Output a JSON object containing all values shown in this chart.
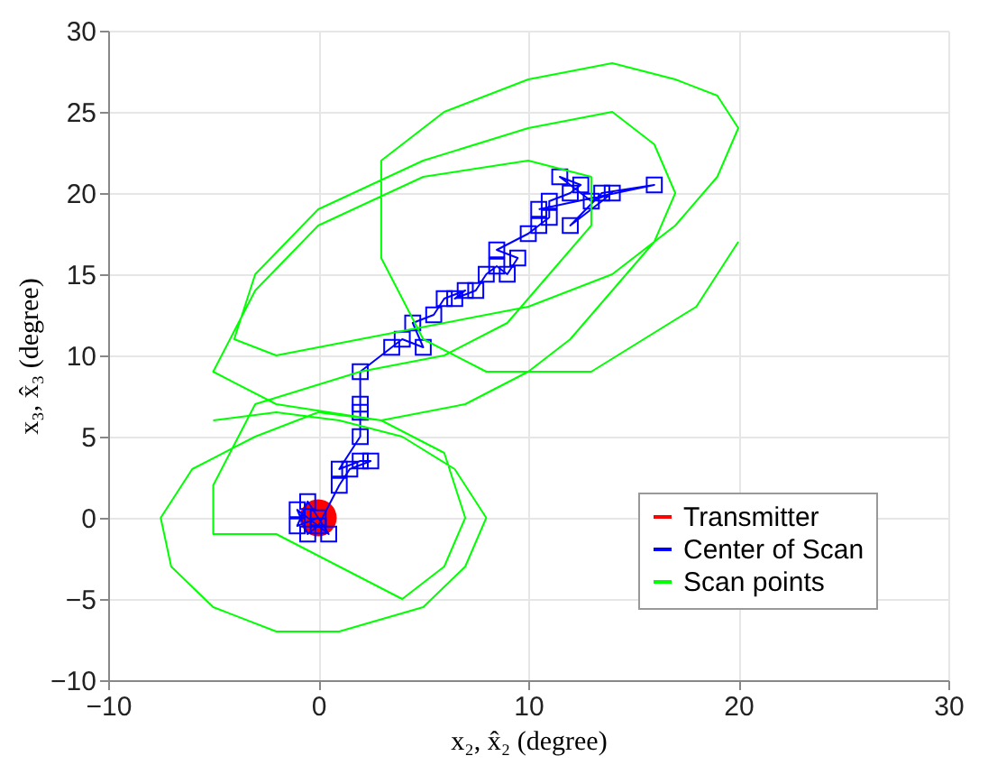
{
  "chart_data": {
    "type": "scatter",
    "xlabel": "x₂, x̂₂ (degree)",
    "ylabel": "x₃, x̂₃ (degree)",
    "xlim": [
      -10,
      30
    ],
    "ylim": [
      -10,
      30
    ],
    "xticks": [
      -10,
      0,
      10,
      20,
      30
    ],
    "yticks": [
      -10,
      -5,
      0,
      5,
      10,
      15,
      20,
      25,
      30
    ],
    "grid": true,
    "legend": "bottom right",
    "series": [
      {
        "name": "Transmitter",
        "marker": "circle",
        "color": "#ff0000",
        "x": [
          0
        ],
        "values": [
          0
        ]
      },
      {
        "name": "Center of Scan",
        "type": "line",
        "marker": "square",
        "color": "#0000ff",
        "x": [
          0,
          -1,
          -0.5,
          0.5,
          -1,
          -0.5,
          0,
          1,
          1.5,
          2.5,
          2,
          1,
          2,
          2,
          2,
          2,
          3.5,
          4,
          5,
          4.5,
          5.5,
          6,
          7,
          6.5,
          7.5,
          8,
          8.5,
          9,
          9.5,
          8.5,
          10,
          10.5,
          11,
          11,
          12,
          12.5,
          11.5,
          13,
          14,
          12,
          13.5,
          16,
          10.5
        ],
        "values": [
          0,
          -0.5,
          1,
          -1,
          0.5,
          -1,
          -0.5,
          2,
          3,
          3.5,
          3.5,
          3,
          5,
          6.5,
          7,
          9,
          10.5,
          11,
          10.5,
          12,
          12.5,
          13.5,
          14,
          13.5,
          14,
          15,
          15.5,
          15,
          16,
          16.5,
          17.5,
          18,
          18.5,
          19.5,
          20,
          20.5,
          21,
          19.5,
          20,
          18,
          20,
          20.5,
          19
        ]
      },
      {
        "name": "Scan points",
        "type": "line",
        "marker": "none",
        "color": "#00ff00",
        "x": [
          -5,
          -2,
          1,
          4,
          6.5,
          8,
          7,
          5,
          1,
          -2,
          -5,
          -7,
          -7.5,
          -6,
          -3,
          0,
          3,
          6,
          7,
          6,
          4,
          1,
          -2,
          -5,
          -5,
          -3,
          2,
          6,
          9,
          11,
          13,
          13,
          10,
          5,
          0,
          -3,
          -5,
          -2,
          3,
          7,
          10,
          12,
          14,
          16,
          17,
          16,
          14,
          10,
          5,
          0,
          -3,
          -4,
          -2,
          2,
          6,
          10,
          14,
          17,
          19,
          20,
          19,
          17,
          14,
          10,
          6,
          3,
          3,
          5,
          8,
          13,
          18,
          20
        ],
        "values": [
          6,
          6.5,
          6,
          5,
          3,
          0,
          -3,
          -5.5,
          -7,
          -7,
          -5.5,
          -3,
          0,
          3,
          5,
          6.5,
          6,
          4,
          0,
          -3,
          -5,
          -3,
          -1,
          -1,
          2,
          7,
          9,
          10,
          12,
          15,
          18,
          21,
          22,
          21,
          18,
          14,
          9,
          7,
          6,
          7,
          9,
          11,
          14,
          17,
          20,
          23,
          25,
          24,
          22,
          19,
          15,
          11,
          10,
          11,
          12,
          13,
          15,
          18,
          21,
          24,
          26,
          27,
          28,
          27,
          25,
          22,
          16,
          11,
          9,
          9,
          13,
          17
        ]
      }
    ]
  }
}
